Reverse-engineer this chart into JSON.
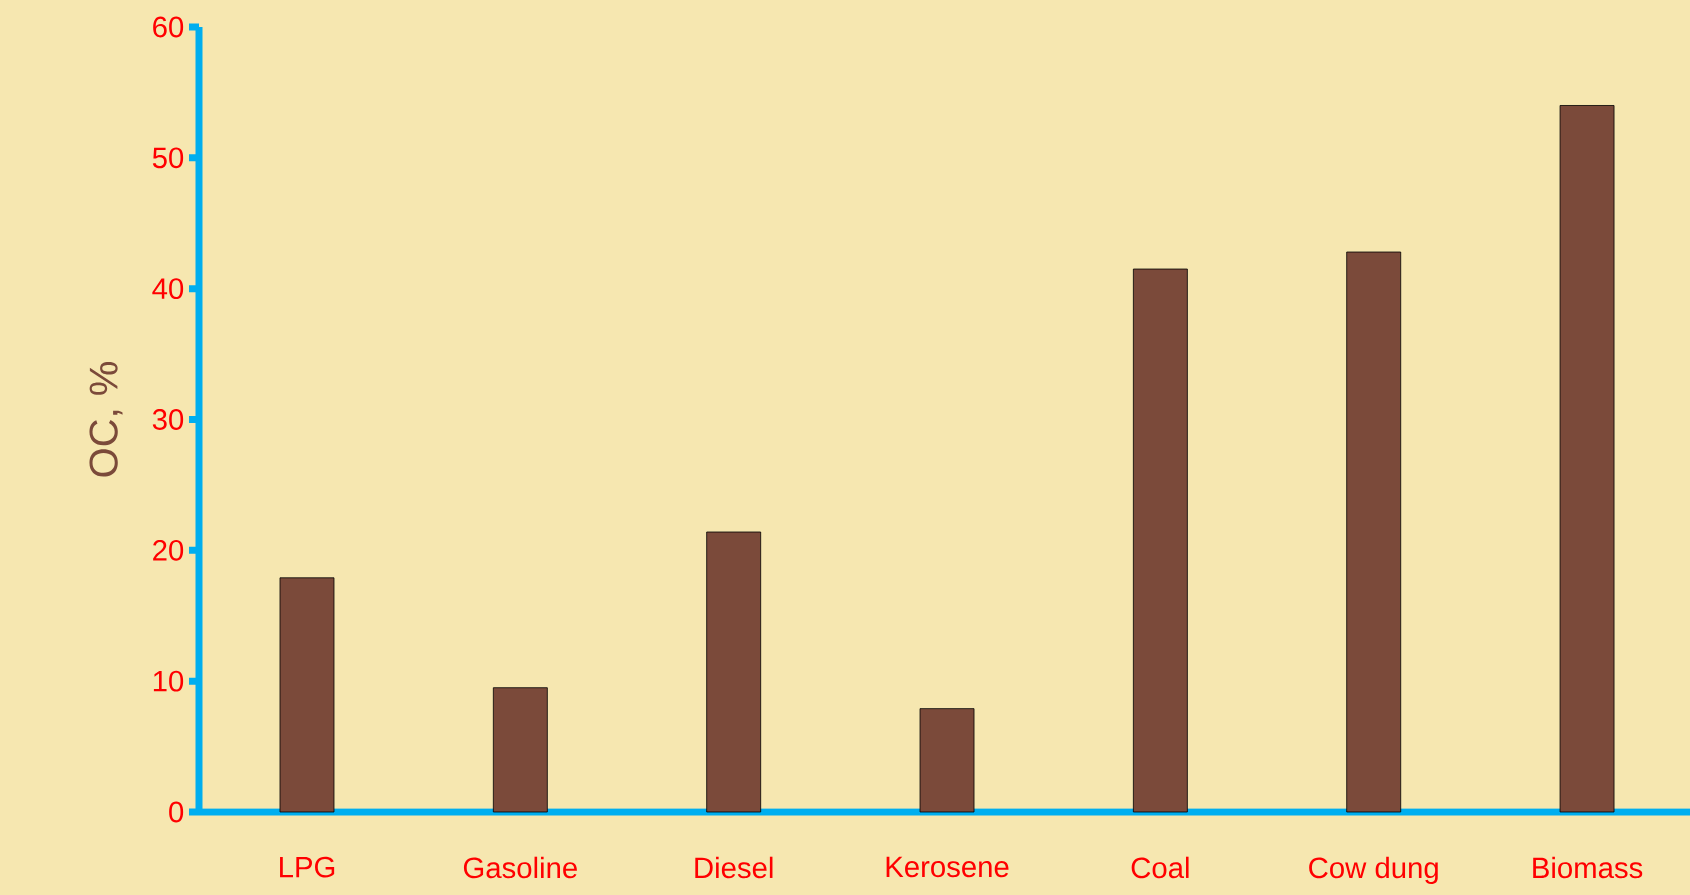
{
  "chart_data": {
    "type": "bar",
    "ylabel": "OC, %",
    "categories": [
      "LPG",
      "Gasoline",
      "Diesel",
      "Kerosene",
      "Coal",
      "Cow dung",
      "Biomass"
    ],
    "values": [
      17.9,
      9.5,
      21.4,
      7.9,
      41.5,
      42.8,
      54.0
    ],
    "color": "#7b4a3a",
    "ylim": [
      0,
      60
    ],
    "yticks": [
      0,
      10,
      20,
      30,
      40,
      50,
      60
    ]
  }
}
